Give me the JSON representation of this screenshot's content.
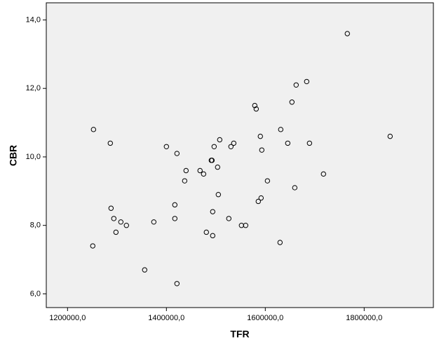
{
  "chart_data": {
    "type": "scatter",
    "x_label": "TFR",
    "y_label": "CBR",
    "x": [
      1252500,
      1251000,
      1286500,
      1288000,
      1293600,
      1297900,
      1307800,
      1319100,
      1356000,
      1374500,
      1400000,
      1417000,
      1417000,
      1421300,
      1421300,
      1439700,
      1436900,
      1468000,
      1475200,
      1480800,
      1490800,
      1492200,
      1493600,
      1493600,
      1496500,
      1503500,
      1505000,
      1507800,
      1526200,
      1530500,
      1536200,
      1551800,
      1560300,
      1578700,
      1581600,
      1585800,
      1590000,
      1591500,
      1592900,
      1604300,
      1631200,
      1629800,
      1645400,
      1653900,
      1659600,
      1662400,
      1683700,
      1689400,
      1717700,
      1765900,
      1852500
    ],
    "values": [
      10.8,
      7.4,
      10.4,
      8.5,
      8.2,
      7.8,
      8.1,
      8.0,
      6.7,
      8.1,
      10.3,
      8.6,
      8.2,
      10.1,
      6.3,
      9.6,
      9.3,
      9.6,
      9.5,
      7.8,
      9.9,
      9.9,
      8.4,
      7.7,
      10.3,
      9.7,
      8.9,
      10.5,
      8.2,
      10.3,
      10.4,
      8.0,
      8.0,
      11.5,
      11.4,
      8.7,
      10.6,
      8.8,
      10.2,
      9.3,
      10.8,
      7.5,
      10.4,
      11.6,
      9.1,
      12.1,
      12.2,
      10.4,
      9.5,
      13.6,
      10.6
    ],
    "color": "#000000",
    "background": "#f0f0f0",
    "grid": false,
    "xlim": [
      1157000,
      1940000
    ],
    "xticks": [
      {
        "value": 1200000,
        "label": "1200000,0"
      },
      {
        "value": 1400000,
        "label": "1400000,0"
      },
      {
        "value": 1600000,
        "label": "1600000,0"
      },
      {
        "value": 1800000,
        "label": "1800000,0"
      }
    ],
    "ylim": [
      5.6,
      14.5
    ],
    "yticks": [
      {
        "value": 6,
        "label": "6,0"
      },
      {
        "value": 8,
        "label": "8,0"
      },
      {
        "value": 10,
        "label": "10,0"
      },
      {
        "value": 12,
        "label": "12,0"
      },
      {
        "value": 14,
        "label": "14,0"
      }
    ]
  }
}
